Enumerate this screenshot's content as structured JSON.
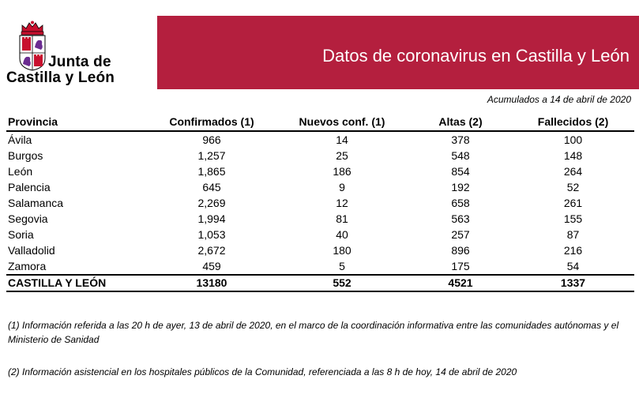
{
  "logo": {
    "line1": "Junta de",
    "line2": "Castilla y León"
  },
  "banner": {
    "title": "Datos de coronavirus en Castilla y León",
    "color": "#b41f3e"
  },
  "subtitle": "Acumulados a 14 de abril de 2020",
  "table": {
    "headers": [
      "Provincia",
      "Confirmados (1)",
      "Nuevos conf. (1)",
      "Altas (2)",
      "Fallecidos (2)"
    ],
    "rows": [
      [
        "Ávila",
        "966",
        "14",
        "378",
        "100"
      ],
      [
        "Burgos",
        "1,257",
        "25",
        "548",
        "148"
      ],
      [
        "León",
        "1,865",
        "186",
        "854",
        "264"
      ],
      [
        "Palencia",
        "645",
        "9",
        "192",
        "52"
      ],
      [
        "Salamanca",
        "2,269",
        "12",
        "658",
        "261"
      ],
      [
        "Segovia",
        "1,994",
        "81",
        "563",
        "155"
      ],
      [
        "Soria",
        "1,053",
        "40",
        "257",
        "87"
      ],
      [
        "Valladolid",
        "2,672",
        "180",
        "896",
        "216"
      ],
      [
        "Zamora",
        "459",
        "5",
        "175",
        "54"
      ]
    ],
    "total": [
      "CASTILLA Y LEÓN",
      "13180",
      "552",
      "4521",
      "1337"
    ]
  },
  "notes": {
    "note1": "(1) Información referida a las 20 h de ayer, 13 de abril de 2020, en el marco de la coordinación informativa entre las comunidades autónomas y el Ministerio de Sanidad",
    "note2": "(2) Información asistencial en los hospitales públicos de la Comunidad, referenciada a las 8 h de hoy, 14 de abril de 2020"
  }
}
